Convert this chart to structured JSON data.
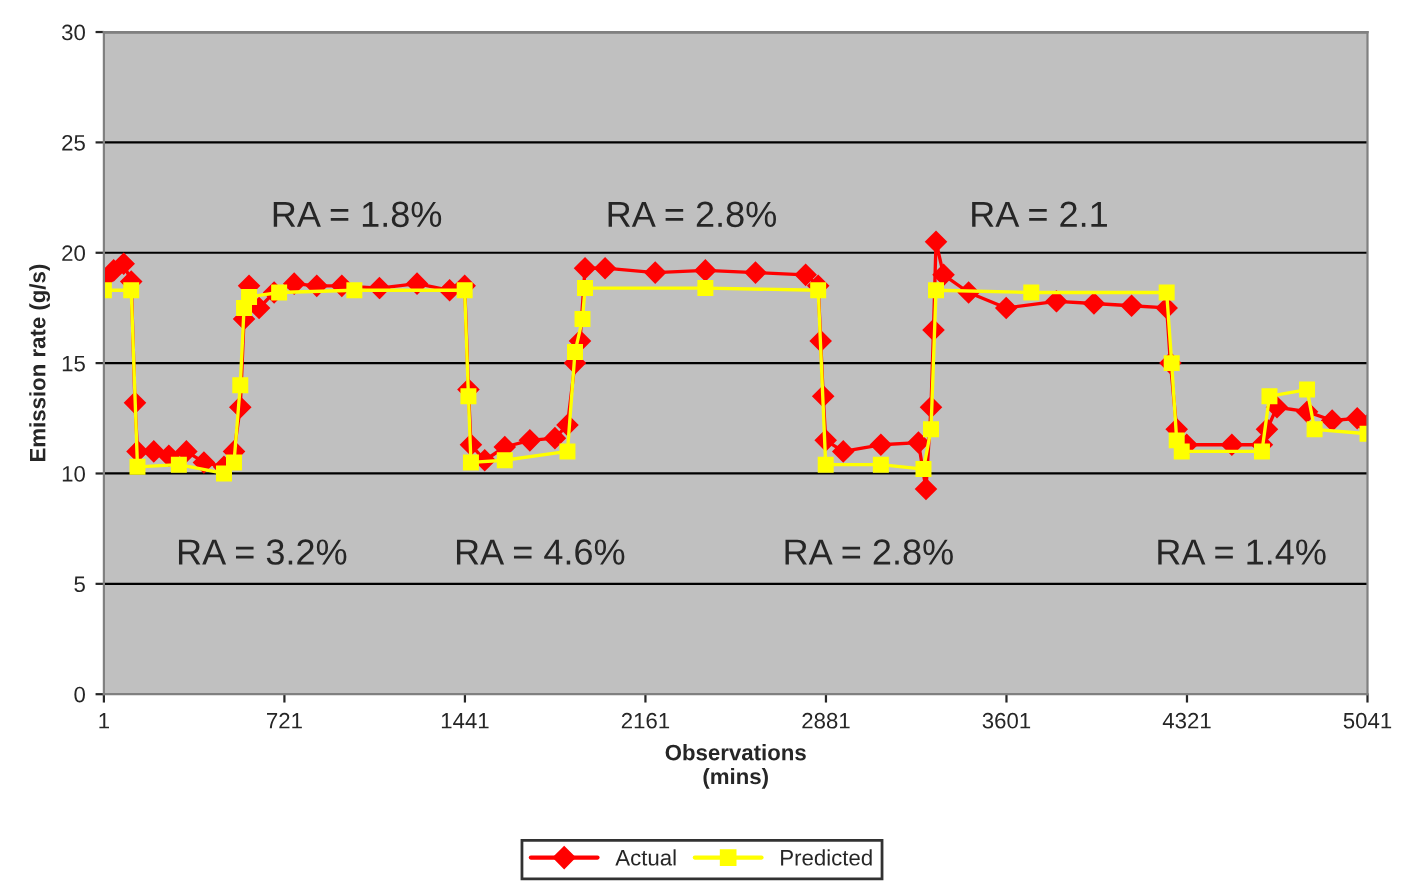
{
  "chart_data": {
    "type": "line",
    "xlabel": "Observations\n(mins)",
    "ylabel": "Emission rate (g/s)",
    "xlim": [
      1,
      5041
    ],
    "xticks": [
      1,
      721,
      1441,
      2161,
      2881,
      3601,
      4321,
      5041
    ],
    "ylim": [
      0,
      30
    ],
    "yticks": [
      0,
      5,
      10,
      15,
      20,
      25,
      30
    ],
    "grid": "y",
    "legend": "bottom",
    "series": [
      {
        "name": "Actual",
        "color": "#ff0000",
        "marker": "diamond",
        "x": [
          1,
          40,
          80,
          110,
          125,
          135,
          200,
          260,
          330,
          400,
          480,
          520,
          545,
          560,
          580,
          620,
          680,
          760,
          850,
          950,
          1100,
          1250,
          1380,
          1440,
          1455,
          1465,
          1520,
          1600,
          1700,
          1800,
          1850,
          1880,
          1900,
          1920,
          2000,
          2200,
          2400,
          2600,
          2800,
          2850,
          2860,
          2870,
          2880,
          2950,
          3100,
          3250,
          3280,
          3300,
          3310,
          3320,
          3350,
          3450,
          3600,
          3800,
          3950,
          4100,
          4240,
          4255,
          4280,
          4320,
          4500,
          4620,
          4640,
          4680,
          4800,
          4900,
          5000,
          5041
        ],
        "values": [
          18.8,
          19.2,
          19.5,
          18.7,
          13.2,
          11,
          11,
          10.8,
          11,
          10.5,
          10.3,
          11,
          13,
          17,
          18.5,
          17.5,
          18.2,
          18.6,
          18.5,
          18.5,
          18.4,
          18.6,
          18.3,
          18.5,
          13.8,
          11.3,
          10.6,
          11.2,
          11.5,
          11.6,
          12.2,
          15,
          16,
          19.3,
          19.3,
          19.1,
          19.2,
          19.1,
          19,
          18.5,
          16,
          13.5,
          11.5,
          11,
          11.3,
          11.4,
          9.3,
          13,
          16.5,
          20.5,
          19,
          18.2,
          17.5,
          17.8,
          17.7,
          17.6,
          17.5,
          15,
          12,
          11.3,
          11.3,
          11.3,
          12,
          13,
          12.8,
          12.4,
          12.5,
          12.2
        ]
      },
      {
        "name": "Predicted",
        "color": "#ffff00",
        "marker": "square",
        "x": [
          1,
          110,
          135,
          300,
          480,
          520,
          545,
          560,
          580,
          700,
          1000,
          1440,
          1455,
          1465,
          1600,
          1850,
          1880,
          1910,
          1920,
          2400,
          2850,
          2880,
          3100,
          3270,
          3300,
          3320,
          3700,
          4240,
          4260,
          4280,
          4300,
          4620,
          4650,
          4800,
          4830,
          5041
        ],
        "values": [
          18.3,
          18.3,
          10.3,
          10.4,
          10,
          10.5,
          14,
          17.5,
          18,
          18.2,
          18.3,
          18.3,
          13.5,
          10.5,
          10.6,
          11,
          15.5,
          17,
          18.4,
          18.4,
          18.3,
          10.4,
          10.4,
          10.2,
          12,
          18.3,
          18.2,
          18.2,
          15,
          11.5,
          11,
          11,
          13.5,
          13.8,
          12,
          11.8
        ]
      }
    ],
    "annotations": [
      "RA = 3.2%",
      "RA = 1.8%",
      "RA = 4.6%",
      "RA = 2.8%",
      "RA = 2.8%",
      "RA = 2.1",
      "RA = 1.4%"
    ]
  }
}
